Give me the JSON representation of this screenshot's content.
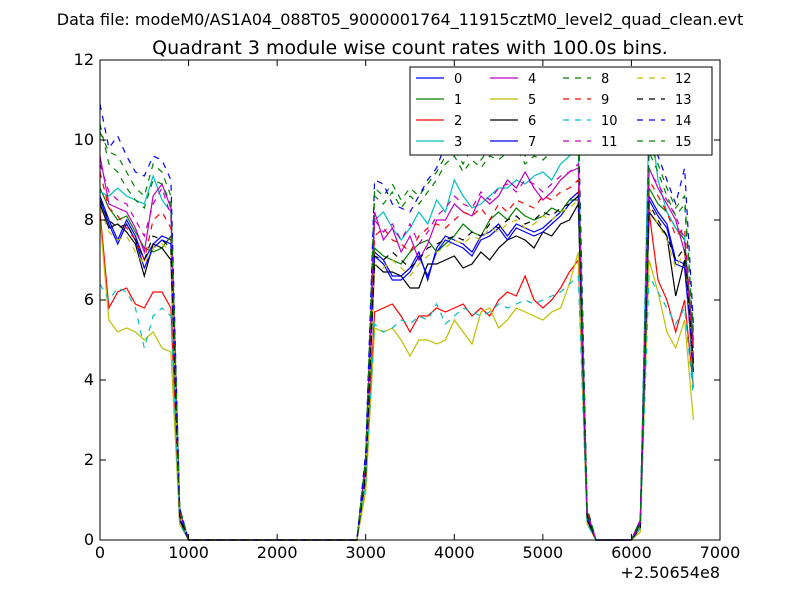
{
  "header": {
    "suptitle": "Data file: modeM0/AS1A04_088T05_9000001764_11915cztM0_level2_quad_clean.evt"
  },
  "chart_data": {
    "type": "line",
    "title": "Quadrant 3 module wise count rates with 100.0s bins.",
    "xlabel": "",
    "ylabel": "",
    "xlim": [
      0,
      7000
    ],
    "ylim": [
      0,
      12
    ],
    "x_offset_label": "+2.50654e8",
    "xticks": [
      0,
      1000,
      2000,
      3000,
      4000,
      5000,
      6000,
      7000
    ],
    "yticks": [
      0,
      2,
      4,
      6,
      8,
      10,
      12
    ],
    "grid": false,
    "legend_position": "top-right",
    "x": [
      0,
      100,
      200,
      300,
      400,
      500,
      600,
      700,
      800,
      900,
      1000,
      1100,
      1200,
      1300,
      1400,
      1500,
      1600,
      1700,
      1800,
      1900,
      2000,
      2100,
      2200,
      2300,
      2400,
      2500,
      2600,
      2700,
      2800,
      2900,
      3000,
      3100,
      3200,
      3300,
      3400,
      3500,
      3600,
      3700,
      3800,
      3900,
      4000,
      4100,
      4200,
      4300,
      4400,
      4500,
      4600,
      4700,
      4800,
      4900,
      5000,
      5100,
      5200,
      5300,
      5400,
      5500,
      5600,
      5700,
      5800,
      5900,
      6000,
      6100,
      6200,
      6300,
      6400,
      6500,
      6600,
      6700
    ],
    "series": [
      {
        "name": "0",
        "color": "#0000ff",
        "dash": "solid",
        "values": [
          8.6,
          8.0,
          7.5,
          8.0,
          7.6,
          7.0,
          7.4,
          7.6,
          7.5,
          0.6,
          0.0,
          0.0,
          0.0,
          0.0,
          0.0,
          0.0,
          0.0,
          0.0,
          0.0,
          0.0,
          0.0,
          0.0,
          0.0,
          0.0,
          0.0,
          0.0,
          0.0,
          0.0,
          0.0,
          0.0,
          1.8,
          7.2,
          7.0,
          6.6,
          6.6,
          6.8,
          7.2,
          6.5,
          7.3,
          7.6,
          7.5,
          7.4,
          7.2,
          7.6,
          7.7,
          7.9,
          7.6,
          7.9,
          7.8,
          7.7,
          7.8,
          8.0,
          8.2,
          8.5,
          8.7,
          0.6,
          0.0,
          0.0,
          0.0,
          0.0,
          0.0,
          0.4,
          8.6,
          8.2,
          7.9,
          7.0,
          6.9,
          4.5
        ]
      },
      {
        "name": "1",
        "color": "#008000",
        "dash": "solid",
        "values": [
          8.8,
          8.3,
          8.0,
          8.1,
          7.7,
          7.3,
          7.2,
          7.3,
          7.6,
          0.6,
          0.0,
          0.0,
          0.0,
          0.0,
          0.0,
          0.0,
          0.0,
          0.0,
          0.0,
          0.0,
          0.0,
          0.0,
          0.0,
          0.0,
          0.0,
          0.0,
          0.0,
          0.0,
          0.0,
          0.0,
          1.8,
          7.3,
          7.1,
          7.0,
          6.9,
          7.2,
          7.4,
          7.5,
          7.2,
          7.4,
          7.6,
          7.9,
          7.7,
          7.6,
          8.0,
          8.2,
          8.0,
          8.3,
          8.1,
          8.0,
          8.1,
          8.3,
          8.2,
          8.5,
          8.5,
          0.6,
          0.0,
          0.0,
          0.0,
          0.0,
          0.0,
          0.4,
          8.8,
          8.4,
          8.2,
          7.8,
          7.5,
          5.0
        ]
      },
      {
        "name": "2",
        "color": "#ff0000",
        "dash": "solid",
        "values": [
          8.2,
          5.8,
          6.2,
          6.3,
          5.9,
          5.8,
          6.2,
          6.2,
          5.8,
          0.4,
          0.0,
          0.0,
          0.0,
          0.0,
          0.0,
          0.0,
          0.0,
          0.0,
          0.0,
          0.0,
          0.0,
          0.0,
          0.0,
          0.0,
          0.0,
          0.0,
          0.0,
          0.0,
          0.0,
          0.0,
          1.5,
          5.7,
          5.8,
          5.9,
          5.6,
          5.2,
          5.6,
          5.6,
          5.8,
          5.7,
          5.8,
          5.9,
          5.6,
          5.8,
          5.6,
          6.0,
          6.2,
          6.1,
          6.6,
          6.0,
          5.8,
          6.0,
          6.3,
          6.7,
          7.0,
          0.5,
          0.0,
          0.0,
          0.0,
          0.0,
          0.0,
          0.3,
          8.2,
          6.5,
          6.0,
          5.2,
          6.0,
          3.8
        ]
      },
      {
        "name": "3",
        "color": "#00bfbf",
        "dash": "solid",
        "values": [
          8.7,
          8.6,
          8.8,
          8.6,
          8.5,
          8.4,
          9.1,
          8.5,
          8.2,
          0.7,
          0.0,
          0.0,
          0.0,
          0.0,
          0.0,
          0.0,
          0.0,
          0.0,
          0.0,
          0.0,
          0.0,
          0.0,
          0.0,
          0.0,
          0.0,
          0.0,
          0.0,
          0.0,
          0.0,
          0.0,
          2.0,
          8.0,
          8.2,
          7.8,
          7.5,
          7.8,
          8.2,
          7.9,
          8.5,
          8.2,
          9.0,
          8.6,
          8.3,
          8.4,
          8.6,
          8.8,
          8.8,
          9.0,
          8.9,
          9.1,
          9.2,
          9.0,
          9.4,
          9.6,
          9.8,
          0.7,
          0.0,
          0.0,
          0.0,
          0.0,
          0.0,
          0.5,
          10.8,
          9.0,
          8.2,
          7.8,
          7.6,
          3.8
        ]
      },
      {
        "name": "4",
        "color": "#bf00bf",
        "dash": "solid",
        "values": [
          9.6,
          8.4,
          8.3,
          8.2,
          7.8,
          7.2,
          8.6,
          8.9,
          8.3,
          0.7,
          0.0,
          0.0,
          0.0,
          0.0,
          0.0,
          0.0,
          0.0,
          0.0,
          0.0,
          0.0,
          0.0,
          0.0,
          0.0,
          0.0,
          0.0,
          0.0,
          0.0,
          0.0,
          0.0,
          0.0,
          1.9,
          8.2,
          7.5,
          7.8,
          7.2,
          7.6,
          7.0,
          7.4,
          8.0,
          8.0,
          8.4,
          8.2,
          8.1,
          8.6,
          8.4,
          8.6,
          9.0,
          8.8,
          9.2,
          8.8,
          8.5,
          8.7,
          9.0,
          9.2,
          9.3,
          0.7,
          0.0,
          0.0,
          0.0,
          0.0,
          0.0,
          0.5,
          9.3,
          8.8,
          8.4,
          8.0,
          7.2,
          4.8
        ]
      },
      {
        "name": "5",
        "color": "#bfbf00",
        "dash": "solid",
        "values": [
          8.0,
          5.5,
          5.2,
          5.3,
          5.2,
          5.0,
          5.2,
          4.8,
          4.7,
          0.4,
          0.0,
          0.0,
          0.0,
          0.0,
          0.0,
          0.0,
          0.0,
          0.0,
          0.0,
          0.0,
          0.0,
          0.0,
          0.0,
          0.0,
          0.0,
          0.0,
          0.0,
          0.0,
          0.0,
          0.0,
          1.2,
          5.3,
          5.2,
          5.3,
          5.0,
          4.6,
          5.0,
          5.0,
          4.9,
          5.0,
          5.5,
          5.2,
          4.9,
          5.7,
          5.8,
          5.3,
          5.5,
          5.8,
          5.7,
          5.6,
          5.5,
          5.7,
          5.8,
          6.4,
          7.2,
          0.4,
          0.0,
          0.0,
          0.0,
          0.0,
          0.0,
          0.2,
          7.0,
          6.2,
          5.2,
          4.8,
          5.5,
          3.0
        ]
      },
      {
        "name": "6",
        "color": "#000000",
        "dash": "solid",
        "values": [
          8.4,
          7.8,
          7.9,
          7.7,
          7.4,
          6.6,
          7.4,
          7.3,
          7.0,
          0.5,
          0.0,
          0.0,
          0.0,
          0.0,
          0.0,
          0.0,
          0.0,
          0.0,
          0.0,
          0.0,
          0.0,
          0.0,
          0.0,
          0.0,
          0.0,
          0.0,
          0.0,
          0.0,
          0.0,
          0.0,
          1.6,
          6.9,
          6.7,
          6.7,
          6.6,
          6.3,
          6.3,
          6.9,
          6.9,
          7.0,
          7.1,
          6.8,
          6.9,
          7.2,
          7.0,
          7.3,
          7.5,
          7.6,
          7.5,
          7.3,
          7.7,
          7.6,
          7.9,
          8.0,
          8.4,
          0.5,
          0.0,
          0.0,
          0.0,
          0.0,
          0.0,
          0.3,
          8.2,
          7.9,
          7.6,
          6.1,
          7.0,
          4.2
        ]
      },
      {
        "name": "7",
        "color": "#0000ff",
        "dash": "solid",
        "values": [
          8.5,
          7.9,
          7.4,
          7.9,
          7.5,
          6.8,
          7.3,
          7.5,
          7.4,
          0.6,
          0.0,
          0.0,
          0.0,
          0.0,
          0.0,
          0.0,
          0.0,
          0.0,
          0.0,
          0.0,
          0.0,
          0.0,
          0.0,
          0.0,
          0.0,
          0.0,
          0.0,
          0.0,
          0.0,
          0.0,
          1.7,
          7.1,
          6.9,
          6.5,
          6.5,
          6.7,
          7.1,
          6.6,
          7.2,
          7.5,
          7.4,
          7.3,
          7.1,
          7.5,
          7.6,
          7.8,
          7.5,
          7.8,
          7.7,
          7.6,
          7.7,
          7.9,
          8.1,
          8.4,
          8.6,
          0.6,
          0.0,
          0.0,
          0.0,
          0.0,
          0.0,
          0.4,
          8.5,
          8.1,
          7.8,
          6.9,
          6.8,
          4.4
        ]
      },
      {
        "name": "8",
        "color": "#008000",
        "dash": "dashed",
        "values": [
          10.2,
          9.7,
          9.6,
          9.2,
          8.8,
          8.6,
          9.4,
          9.2,
          8.6,
          0.8,
          0.0,
          0.0,
          0.0,
          0.0,
          0.0,
          0.0,
          0.0,
          0.0,
          0.0,
          0.0,
          0.0,
          0.0,
          0.0,
          0.0,
          0.0,
          0.0,
          0.0,
          0.0,
          0.0,
          0.0,
          2.1,
          8.8,
          8.6,
          8.9,
          8.5,
          8.8,
          8.6,
          8.9,
          9.2,
          9.6,
          9.8,
          9.4,
          9.8,
          9.5,
          9.8,
          9.7,
          9.9,
          10.0,
          9.6,
          9.8,
          9.7,
          9.9,
          10.1,
          10.0,
          10.2,
          0.8,
          0.0,
          0.0,
          0.0,
          0.0,
          0.0,
          0.5,
          9.9,
          9.4,
          8.8,
          8.3,
          8.6,
          5.2
        ]
      },
      {
        "name": "9",
        "color": "#ff0000",
        "dash": "dashed",
        "values": [
          9.2,
          8.3,
          8.1,
          7.8,
          7.5,
          7.0,
          8.0,
          8.2,
          7.8,
          0.7,
          0.0,
          0.0,
          0.0,
          0.0,
          0.0,
          0.0,
          0.0,
          0.0,
          0.0,
          0.0,
          0.0,
          0.0,
          0.0,
          0.0,
          0.0,
          0.0,
          0.0,
          0.0,
          0.0,
          0.0,
          1.9,
          7.6,
          7.8,
          7.5,
          7.4,
          7.2,
          7.6,
          7.8,
          7.9,
          7.8,
          8.0,
          8.2,
          8.1,
          8.3,
          8.0,
          8.4,
          8.2,
          8.5,
          8.4,
          8.3,
          8.6,
          8.5,
          8.7,
          8.8,
          9.0,
          0.7,
          0.0,
          0.0,
          0.0,
          0.0,
          0.0,
          0.4,
          9.0,
          8.6,
          8.2,
          7.6,
          7.8,
          4.6
        ]
      },
      {
        "name": "10",
        "color": "#00bfbf",
        "dash": "dashed",
        "values": [
          6.4,
          6.0,
          6.3,
          6.2,
          5.8,
          4.8,
          5.6,
          5.8,
          5.6,
          0.4,
          0.0,
          0.0,
          0.0,
          0.0,
          0.0,
          0.0,
          0.0,
          0.0,
          0.0,
          0.0,
          0.0,
          0.0,
          0.0,
          0.0,
          0.0,
          0.0,
          0.0,
          0.0,
          0.0,
          0.0,
          1.4,
          5.4,
          5.2,
          5.3,
          5.5,
          5.4,
          5.6,
          5.5,
          5.9,
          5.4,
          5.6,
          5.8,
          5.7,
          5.6,
          5.7,
          5.9,
          5.8,
          5.9,
          6.0,
          5.9,
          6.0,
          6.1,
          6.2,
          6.4,
          6.6,
          0.4,
          0.0,
          0.0,
          0.0,
          0.0,
          0.0,
          0.3,
          6.6,
          6.2,
          5.8,
          5.4,
          5.8,
          3.6
        ]
      },
      {
        "name": "11",
        "color": "#bf00bf",
        "dash": "dashed",
        "values": [
          9.4,
          8.7,
          8.5,
          8.4,
          8.0,
          7.6,
          8.4,
          8.8,
          8.1,
          0.7,
          0.0,
          0.0,
          0.0,
          0.0,
          0.0,
          0.0,
          0.0,
          0.0,
          0.0,
          0.0,
          0.0,
          0.0,
          0.0,
          0.0,
          0.0,
          0.0,
          0.0,
          0.0,
          0.0,
          0.0,
          1.8,
          8.0,
          7.7,
          7.9,
          7.5,
          7.9,
          7.4,
          7.7,
          8.1,
          8.3,
          8.6,
          8.4,
          8.3,
          8.7,
          8.5,
          8.8,
          8.9,
          8.7,
          9.0,
          8.9,
          8.7,
          8.9,
          9.1,
          9.2,
          9.4,
          0.7,
          0.0,
          0.0,
          0.0,
          0.0,
          0.0,
          0.5,
          9.2,
          8.9,
          8.5,
          8.1,
          7.5,
          4.9
        ]
      },
      {
        "name": "12",
        "color": "#bfbf00",
        "dash": "dashed",
        "values": [
          8.3,
          7.7,
          7.5,
          7.6,
          7.2,
          6.9,
          7.3,
          7.4,
          7.2,
          0.6,
          0.0,
          0.0,
          0.0,
          0.0,
          0.0,
          0.0,
          0.0,
          0.0,
          0.0,
          0.0,
          0.0,
          0.0,
          0.0,
          0.0,
          0.0,
          0.0,
          0.0,
          0.0,
          0.0,
          0.0,
          1.6,
          6.9,
          6.8,
          7.0,
          6.8,
          6.6,
          6.9,
          7.1,
          7.2,
          7.3,
          7.5,
          7.4,
          7.6,
          7.5,
          7.8,
          7.7,
          7.9,
          8.0,
          7.8,
          7.9,
          8.1,
          8.0,
          8.2,
          8.3,
          8.5,
          0.6,
          0.0,
          0.0,
          0.0,
          0.0,
          0.0,
          0.4,
          8.3,
          7.9,
          7.5,
          6.8,
          7.2,
          4.3
        ]
      },
      {
        "name": "13",
        "color": "#000000",
        "dash": "dashed",
        "values": [
          8.5,
          8.0,
          7.8,
          7.9,
          7.5,
          7.0,
          7.6,
          7.5,
          7.3,
          0.6,
          0.0,
          0.0,
          0.0,
          0.0,
          0.0,
          0.0,
          0.0,
          0.0,
          0.0,
          0.0,
          0.0,
          0.0,
          0.0,
          0.0,
          0.0,
          0.0,
          0.0,
          0.0,
          0.0,
          0.0,
          1.7,
          7.1,
          7.0,
          7.2,
          7.0,
          6.8,
          7.0,
          7.3,
          7.4,
          7.5,
          7.6,
          7.5,
          7.7,
          7.6,
          7.9,
          7.8,
          8.0,
          8.1,
          7.9,
          8.0,
          8.2,
          8.1,
          8.3,
          8.4,
          8.6,
          0.6,
          0.0,
          0.0,
          0.0,
          0.0,
          0.0,
          0.4,
          8.4,
          8.0,
          7.6,
          7.0,
          7.3,
          4.4
        ]
      },
      {
        "name": "14",
        "color": "#0000ff",
        "dash": "dashed",
        "values": [
          10.9,
          9.8,
          10.1,
          9.6,
          9.2,
          9.1,
          9.6,
          9.5,
          9.0,
          0.8,
          0.0,
          0.0,
          0.0,
          0.0,
          0.0,
          0.0,
          0.0,
          0.0,
          0.0,
          0.0,
          0.0,
          0.0,
          0.0,
          0.0,
          0.0,
          0.0,
          0.0,
          0.0,
          0.0,
          0.0,
          2.2,
          9.0,
          8.9,
          8.4,
          8.3,
          8.2,
          8.6,
          9.0,
          9.3,
          9.9,
          10.0,
          9.7,
          10.2,
          10.0,
          10.3,
          10.1,
          10.4,
          10.6,
          10.2,
          10.4,
          10.1,
          10.3,
          10.5,
          10.3,
          10.6,
          0.8,
          0.0,
          0.0,
          0.0,
          0.0,
          0.0,
          0.5,
          10.0,
          9.6,
          9.0,
          8.4,
          9.3,
          5.4
        ]
      },
      {
        "name": "15",
        "color": "#008000",
        "dash": "dashed",
        "values": [
          10.4,
          9.4,
          9.2,
          8.8,
          8.5,
          8.3,
          9.0,
          8.9,
          8.4,
          0.8,
          0.0,
          0.0,
          0.0,
          0.0,
          0.0,
          0.0,
          0.0,
          0.0,
          0.0,
          0.0,
          0.0,
          0.0,
          0.0,
          0.0,
          0.0,
          0.0,
          0.0,
          0.0,
          0.0,
          0.0,
          2.0,
          8.6,
          8.4,
          8.7,
          8.3,
          8.6,
          8.4,
          8.7,
          9.0,
          9.4,
          9.6,
          9.2,
          9.5,
          9.3,
          9.6,
          9.5,
          9.7,
          9.8,
          9.4,
          9.6,
          9.5,
          9.7,
          9.9,
          9.8,
          10.0,
          0.8,
          0.0,
          0.0,
          0.0,
          0.0,
          0.0,
          0.5,
          9.7,
          9.2,
          8.6,
          8.1,
          8.4,
          5.1
        ]
      }
    ]
  }
}
